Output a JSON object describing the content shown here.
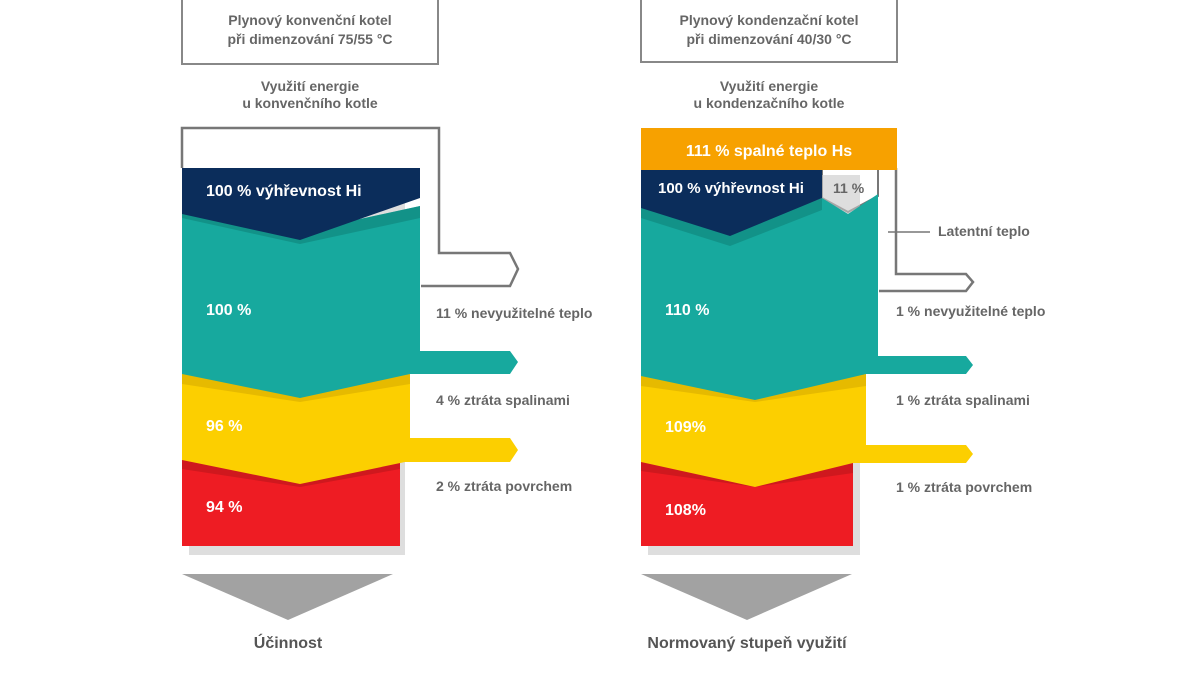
{
  "colors": {
    "heating_value": "#0b2d5b",
    "usable": "#17a99e",
    "exhaust": "#fccf00",
    "surface": "#ee1c23",
    "condensing_top": "#f7a100",
    "outline": "#777777",
    "text": "#666666"
  },
  "left": {
    "box_line1": "Plynový konvenční kotel",
    "box_line2": "při dimenzování 75/55 °C",
    "sub_line1": "Využití energie",
    "sub_line2": "u konvenčního kotle",
    "band_top": "100 % výhřevnost Hi",
    "val_teal": "100 %",
    "val_yellow": "96 %",
    "val_red": "94 %",
    "loss_unused": "11 % nevyužitelné teplo",
    "loss_exhaust": "4 % ztráta spalinami",
    "loss_surface": "2 % ztráta povrchem",
    "footer": "Účinnost"
  },
  "right": {
    "box_line1": "Plynový kondenzační kotel",
    "box_line2": "při dimenzování 40/30 °C",
    "sub_line1": "Využití energie",
    "sub_line2": "u kondenzačního kotle",
    "band_orange": "111 % spalné teplo Hs",
    "band_top": "100 % výhřevnost Hi",
    "latent_pct": "11 %",
    "latent_label": "Latentní teplo",
    "val_teal": "110 %",
    "val_yellow": "109%",
    "val_red": "108%",
    "loss_unused": "1 % nevyužitelné teplo",
    "loss_exhaust": "1 % ztráta spalinami",
    "loss_surface": "1 % ztráta povrchem",
    "footer": "Normovaný stupeň využití"
  }
}
